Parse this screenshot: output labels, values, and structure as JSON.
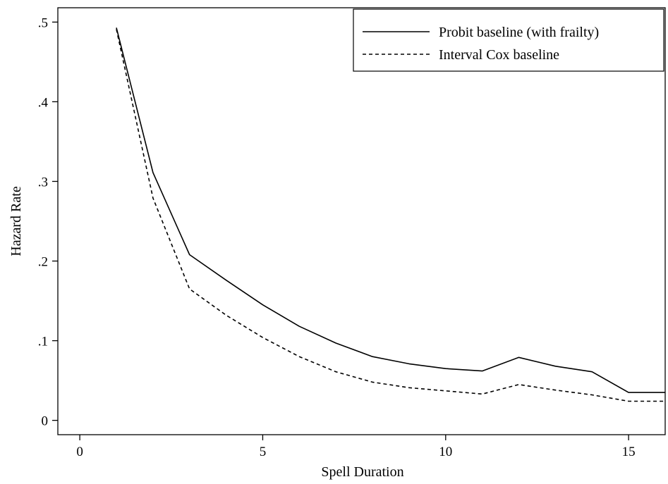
{
  "chart_data": {
    "type": "line",
    "xlabel": "Spell Duration",
    "ylabel": "Hazard Rate",
    "xlim": [
      -0.6,
      16
    ],
    "ylim": [
      -0.018,
      0.518
    ],
    "xticks": [
      0,
      5,
      10,
      15
    ],
    "xtick_labels": [
      "0",
      "5",
      "10",
      "15"
    ],
    "yticks": [
      0,
      0.1,
      0.2,
      0.3,
      0.4,
      0.5
    ],
    "ytick_labels": [
      "0",
      ".1",
      ".2",
      ".3",
      ".4",
      ".5"
    ],
    "grid": false,
    "legend_position": "top-right",
    "series": [
      {
        "name": "Probit baseline (with frailty)",
        "style": "solid",
        "color": "#000000",
        "x": [
          1,
          2,
          3,
          4,
          5,
          6,
          7,
          8,
          9,
          10,
          11,
          12,
          13,
          14,
          15,
          16
        ],
        "y": [
          0.493,
          0.311,
          0.208,
          0.176,
          0.145,
          0.118,
          0.097,
          0.08,
          0.071,
          0.065,
          0.062,
          0.079,
          0.068,
          0.061,
          0.035,
          0.035
        ]
      },
      {
        "name": "Interval Cox baseline",
        "style": "dashed",
        "color": "#000000",
        "x": [
          1,
          2,
          3,
          4,
          5,
          6,
          7,
          8,
          9,
          10,
          11,
          12,
          13,
          14,
          15,
          16
        ],
        "y": [
          0.491,
          0.279,
          0.165,
          0.132,
          0.104,
          0.08,
          0.061,
          0.048,
          0.041,
          0.037,
          0.033,
          0.045,
          0.038,
          0.032,
          0.024,
          0.024
        ]
      }
    ]
  }
}
